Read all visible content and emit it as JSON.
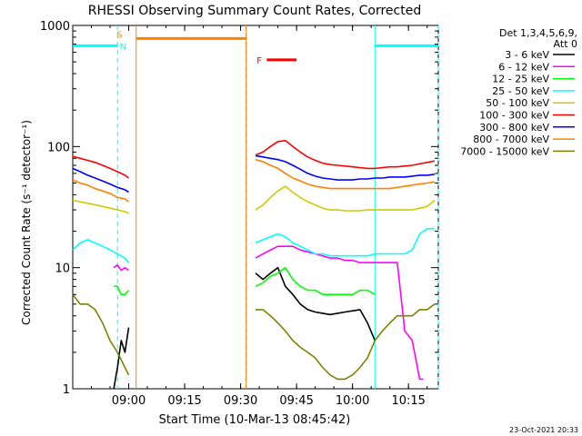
{
  "chart_data": {
    "type": "line",
    "title": "RHESSI Observing Summary Count Rates, Corrected",
    "ylabel": "Corrected Count Rate (s⁻¹ detector⁻¹)",
    "xlabel": "Start Time (10-Mar-13 08:45:42)",
    "ylog": true,
    "ylim": [
      1,
      1000
    ],
    "xlim_minutes": [
      -15,
      83
    ],
    "x_ticks": [
      {
        "label": "09:00",
        "m": 0
      },
      {
        "label": "09:15",
        "m": 15
      },
      {
        "label": "09:30",
        "m": 30
      },
      {
        "label": "09:45",
        "m": 45
      },
      {
        "label": "10:00",
        "m": 60
      },
      {
        "label": "10:15",
        "m": 75
      }
    ],
    "y_ticks": [
      {
        "label": "1",
        "v": 1
      },
      {
        "label": "10",
        "v": 10
      },
      {
        "label": "100",
        "v": 100
      },
      {
        "label": "1000",
        "v": 1000
      }
    ],
    "legend": {
      "header": [
        "Det 1,3,4,5,6,9,",
        "Att 0"
      ],
      "position": "top-right"
    },
    "series": [
      {
        "name": "3 - 6 keV",
        "color": "#000000",
        "segments": [
          {
            "x": [
              -4,
              -3,
              -2,
              -1,
              0
            ],
            "y": [
              1.0,
              1.5,
              2.5,
              2.0,
              3.2
            ]
          },
          {
            "x": [
              34,
              36,
              38,
              40,
              42,
              44,
              46,
              48,
              50,
              52,
              54,
              56,
              58,
              60,
              62,
              64,
              66
            ],
            "y": [
              9,
              8,
              9,
              10,
              7,
              6,
              5,
              4.5,
              4.3,
              4.2,
              4.1,
              4.2,
              4.3,
              4.4,
              4.5,
              3.5,
              2.5
            ]
          }
        ]
      },
      {
        "name": "6 - 12 keV",
        "color": "#ff00ff",
        "segments": [
          {
            "x": [
              -4,
              -3,
              -2,
              -1,
              0
            ],
            "y": [
              10,
              10.5,
              9.5,
              10,
              9.5
            ]
          },
          {
            "x": [
              34,
              36,
              38,
              40,
              42,
              44,
              46,
              48,
              50,
              52,
              54,
              56,
              58,
              60,
              62,
              64,
              66,
              68,
              70,
              72,
              74,
              76,
              78,
              79
            ],
            "y": [
              12,
              13,
              14,
              15,
              15,
              15,
              14,
              13.5,
              13,
              12.5,
              12,
              12,
              11.5,
              11.5,
              11,
              11,
              11,
              11,
              11,
              11,
              3,
              2.5,
              1.2,
              1.2
            ]
          }
        ]
      },
      {
        "name": "12 - 25 keV",
        "color": "#00ff00",
        "segments": [
          {
            "x": [
              -4,
              -3,
              -2,
              -1,
              0
            ],
            "y": [
              7,
              7,
              6,
              6,
              6.5
            ]
          },
          {
            "x": [
              34,
              36,
              38,
              40,
              42,
              44,
              46,
              48,
              50,
              52,
              54,
              56,
              58,
              60,
              62,
              64,
              66
            ],
            "y": [
              7,
              7.5,
              8.5,
              9,
              10,
              8,
              7,
              6.5,
              6.5,
              6,
              6,
              6,
              6,
              6,
              6.5,
              6.5,
              6
            ]
          }
        ]
      },
      {
        "name": "25 - 50 keV",
        "color": "#00ffff",
        "segments": [
          {
            "x": [
              -15,
              -13,
              -11,
              -9,
              -7,
              -5,
              -3,
              -1,
              0
            ],
            "y": [
              14,
              16,
              17,
              16,
              15,
              14,
              13,
              12,
              11
            ]
          },
          {
            "x": [
              34,
              36,
              38,
              40,
              42,
              44,
              46,
              48,
              50,
              52,
              54,
              56,
              58,
              60,
              62,
              64,
              66,
              68,
              70,
              72,
              74,
              76,
              78,
              80,
              82
            ],
            "y": [
              16,
              17,
              18,
              19,
              18,
              16,
              15,
              14,
              13,
              13,
              12.5,
              12.5,
              12.5,
              12.5,
              12.5,
              12.5,
              13,
              13,
              13,
              13,
              13,
              14,
              19,
              21,
              21
            ]
          }
        ]
      },
      {
        "name": "50 - 100 keV",
        "color": "#cccc00",
        "segments": [
          {
            "x": [
              -15,
              -13,
              -11,
              -9,
              -7,
              -5,
              -3,
              -1,
              0
            ],
            "y": [
              36,
              35,
              34,
              33,
              32,
              31,
              30,
              29,
              28
            ]
          },
          {
            "x": [
              34,
              36,
              38,
              40,
              42,
              44,
              46,
              48,
              50,
              52,
              54,
              56,
              58,
              60,
              62,
              64,
              66,
              68,
              70,
              72,
              74,
              76,
              78,
              80,
              82
            ],
            "y": [
              30,
              33,
              38,
              43,
              47,
              42,
              38,
              35,
              33,
              31,
              30,
              30,
              29.5,
              29.5,
              29.5,
              30,
              30,
              30,
              30,
              30,
              30,
              30,
              31,
              32,
              36
            ]
          }
        ]
      },
      {
        "name": "100 - 300 keV",
        "color": "#ff0000",
        "segments": [
          {
            "x": [
              -15,
              -13,
              -11,
              -9,
              -7,
              -5,
              -3,
              -1,
              0
            ],
            "y": [
              83,
              80,
              77,
              74,
              70,
              66,
              62,
              58,
              55
            ]
          },
          {
            "x": [
              34,
              36,
              38,
              40,
              42,
              44,
              46,
              48,
              50,
              52,
              54,
              56,
              58,
              60,
              62,
              64,
              66,
              68,
              70,
              72,
              74,
              76,
              78,
              80,
              82
            ],
            "y": [
              85,
              90,
              100,
              110,
              112,
              100,
              90,
              82,
              77,
              73,
              71,
              70,
              69,
              68,
              67,
              66,
              66,
              67,
              68,
              68,
              69,
              70,
              72,
              74,
              76
            ]
          }
        ]
      },
      {
        "name": "300 - 800 keV",
        "color": "#0000ff",
        "segments": [
          {
            "x": [
              -15,
              -13,
              -11,
              -9,
              -7,
              -5,
              -3,
              -1,
              0
            ],
            "y": [
              66,
              62,
              58,
              55,
              52,
              49,
              46,
              44,
              42
            ]
          },
          {
            "x": [
              34,
              36,
              38,
              40,
              42,
              44,
              46,
              48,
              50,
              52,
              54,
              56,
              58,
              60,
              62,
              64,
              66,
              68,
              70,
              72,
              74,
              76,
              78,
              80,
              82
            ],
            "y": [
              84,
              82,
              80,
              78,
              75,
              70,
              65,
              60,
              57,
              55,
              54,
              53,
              53,
              53,
              54,
              54,
              55,
              55,
              56,
              56,
              56,
              57,
              58,
              58,
              59
            ]
          }
        ]
      },
      {
        "name": "800 - 7000 keV",
        "color": "#ff8000",
        "segments": [
          {
            "x": [
              -15,
              -13,
              -11,
              -9,
              -7,
              -5,
              -3,
              -1,
              0
            ],
            "y": [
              53,
              50,
              48,
              45,
              43,
              41,
              38,
              37,
              35
            ]
          },
          {
            "x": [
              34,
              36,
              38,
              40,
              42,
              44,
              46,
              48,
              50,
              52,
              54,
              56,
              58,
              60,
              62,
              64,
              66,
              68,
              70,
              72,
              74,
              76,
              78,
              80,
              82
            ],
            "y": [
              78,
              75,
              70,
              66,
              60,
              55,
              52,
              49,
              47,
              46,
              45,
              45,
              45,
              45,
              45,
              45,
              45,
              45,
              45,
              46,
              47,
              48,
              49,
              50,
              51
            ]
          }
        ]
      },
      {
        "name": "7000 - 15000 keV",
        "color": "#808000",
        "segments": [
          {
            "x": [
              -15,
              -13,
              -11,
              -9,
              -7,
              -5,
              -3,
              -1,
              0
            ],
            "y": [
              6,
              5,
              5,
              4.5,
              3.5,
              2.5,
              2.0,
              1.5,
              1.3
            ]
          },
          {
            "x": [
              34,
              36,
              38,
              40,
              42,
              44,
              46,
              48,
              50,
              52,
              54,
              56,
              58,
              60,
              62,
              64,
              66,
              68,
              70,
              72,
              74,
              76,
              78,
              80,
              82
            ],
            "y": [
              4.5,
              4.5,
              4,
              3.5,
              3,
              2.5,
              2.2,
              2,
              1.8,
              1.5,
              1.3,
              1.2,
              1.2,
              1.3,
              1.5,
              1.8,
              2.5,
              3,
              3.5,
              4,
              4,
              4,
              4.5,
              4.5,
              5
            ]
          }
        ]
      }
    ],
    "flags": [
      {
        "kind": "solid",
        "color": "#00ffff",
        "x_start": -15,
        "x_end": -3,
        "v": 680
      },
      {
        "kind": "solid",
        "color": "#00ffff",
        "x_start": 66,
        "x_end": 83,
        "v": 680
      },
      {
        "kind": "solid",
        "color": "#ff8000",
        "x_start": 2,
        "x_end": 31.5,
        "v": 780
      },
      {
        "kind": "solid",
        "color": "#ff0000",
        "x_start": 37,
        "x_end": 45,
        "v": 520
      }
    ],
    "vlines": [
      {
        "color": "#00ffff",
        "dash": true,
        "m": -3
      },
      {
        "color": "#ff8000",
        "dash": false,
        "m": 2
      },
      {
        "color": "#ff8000",
        "dash": false,
        "m": 31.5
      },
      {
        "color": "#ff8000",
        "dash": true,
        "m": 31.5
      },
      {
        "color": "#00ffff",
        "dash": false,
        "m": 66
      },
      {
        "color": "#00ffff",
        "dash": true,
        "m": 83
      }
    ],
    "flag_labels": [
      {
        "text": "S",
        "color": "#ff8000",
        "m": -2.5,
        "v": 850
      },
      {
        "text": "N",
        "color": "#00ffff",
        "m": -1.5,
        "v": 680
      },
      {
        "text": "F",
        "color": "#ff0000",
        "m": 35,
        "v": 520
      }
    ]
  },
  "timestamp": "23-Oct-2021 20:33"
}
